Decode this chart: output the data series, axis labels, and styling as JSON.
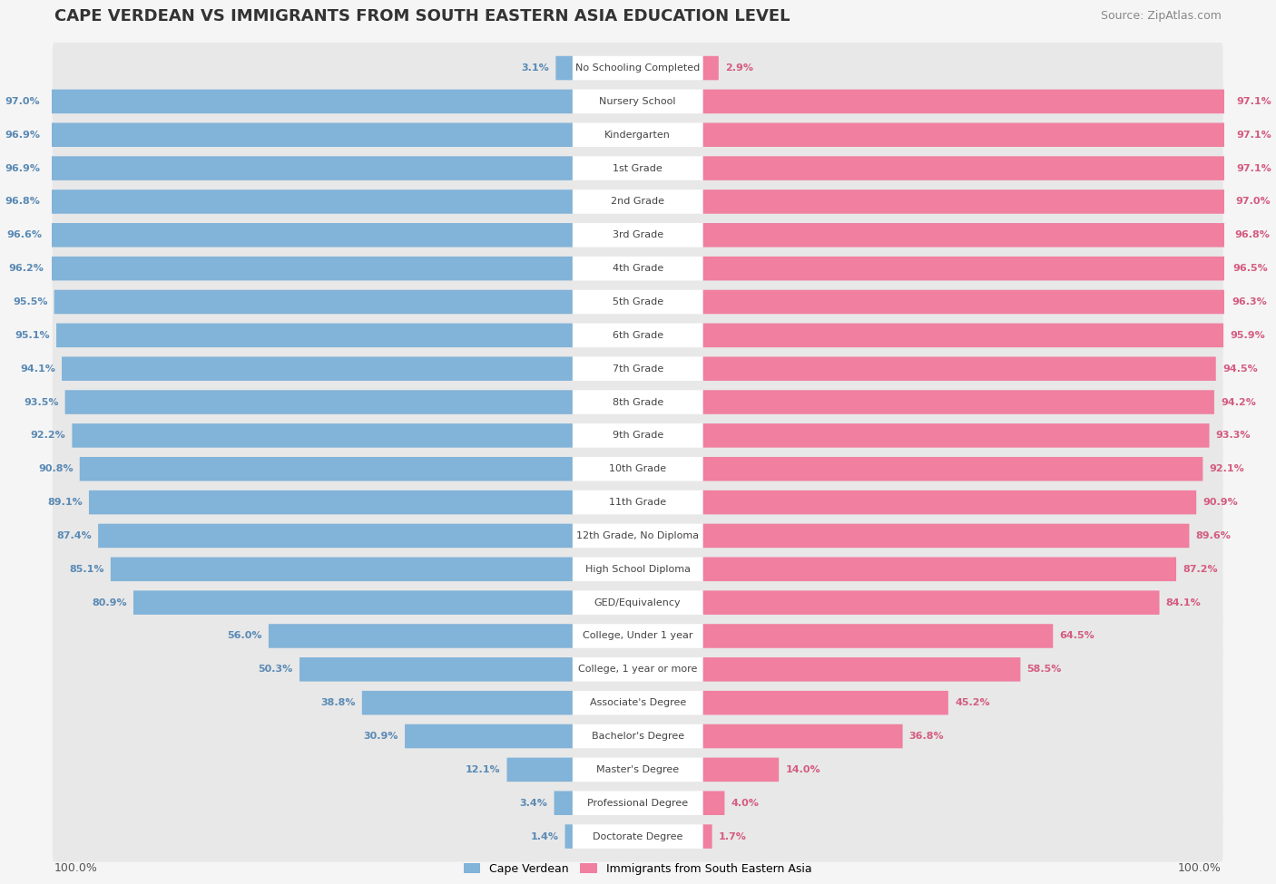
{
  "title": "CAPE VERDEAN VS IMMIGRANTS FROM SOUTH EASTERN ASIA EDUCATION LEVEL",
  "source": "Source: ZipAtlas.com",
  "categories": [
    "No Schooling Completed",
    "Nursery School",
    "Kindergarten",
    "1st Grade",
    "2nd Grade",
    "3rd Grade",
    "4th Grade",
    "5th Grade",
    "6th Grade",
    "7th Grade",
    "8th Grade",
    "9th Grade",
    "10th Grade",
    "11th Grade",
    "12th Grade, No Diploma",
    "High School Diploma",
    "GED/Equivalency",
    "College, Under 1 year",
    "College, 1 year or more",
    "Associate's Degree",
    "Bachelor's Degree",
    "Master's Degree",
    "Professional Degree",
    "Doctorate Degree"
  ],
  "cape_verdean": [
    3.1,
    97.0,
    96.9,
    96.9,
    96.8,
    96.6,
    96.2,
    95.5,
    95.1,
    94.1,
    93.5,
    92.2,
    90.8,
    89.1,
    87.4,
    85.1,
    80.9,
    56.0,
    50.3,
    38.8,
    30.9,
    12.1,
    3.4,
    1.4
  ],
  "sea_immigrants": [
    2.9,
    97.1,
    97.1,
    97.1,
    97.0,
    96.8,
    96.5,
    96.3,
    95.9,
    94.5,
    94.2,
    93.3,
    92.1,
    90.9,
    89.6,
    87.2,
    84.1,
    64.5,
    58.5,
    45.2,
    36.8,
    14.0,
    4.0,
    1.7
  ],
  "cv_color": "#82b3d8",
  "sea_color": "#f07fa0",
  "row_bg_color": "#e8e8e8",
  "background_color": "#f5f5f5",
  "label_color_cv": "#5a8ab5",
  "label_color_sea": "#d45c80",
  "center_label_color": "#444444",
  "legend_label_cv": "Cape Verdean",
  "legend_label_sea": "Immigrants from South Eastern Asia",
  "title_fontsize": 13,
  "source_fontsize": 9,
  "bar_label_fontsize": 8,
  "cat_label_fontsize": 8,
  "legend_fontsize": 9
}
